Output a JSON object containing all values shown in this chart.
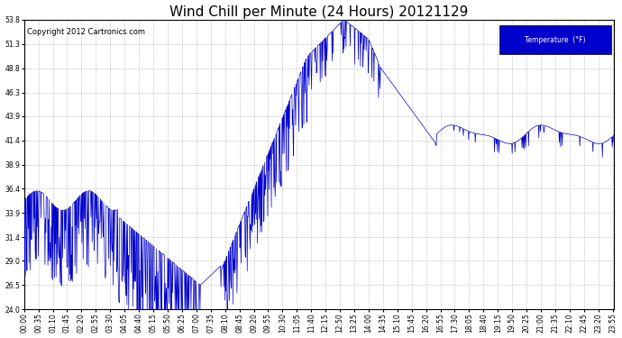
{
  "title": "Wind Chill per Minute (24 Hours) 20121129",
  "copyright_text": "Copyright 2012 Cartronics.com",
  "legend_label": "Temperature  (°F)",
  "legend_bg": "#0000cd",
  "legend_text_color": "#ffffff",
  "line_color": "#0000cd",
  "bg_color": "#ffffff",
  "grid_color": "#bbbbbb",
  "ylim": [
    24.0,
    53.8
  ],
  "yticks": [
    24.0,
    26.5,
    29.0,
    31.4,
    33.9,
    36.4,
    38.9,
    41.4,
    43.9,
    46.3,
    48.8,
    51.3,
    53.8
  ],
  "title_fontsize": 11,
  "tick_fontsize": 5.5,
  "copyright_fontsize": 6
}
